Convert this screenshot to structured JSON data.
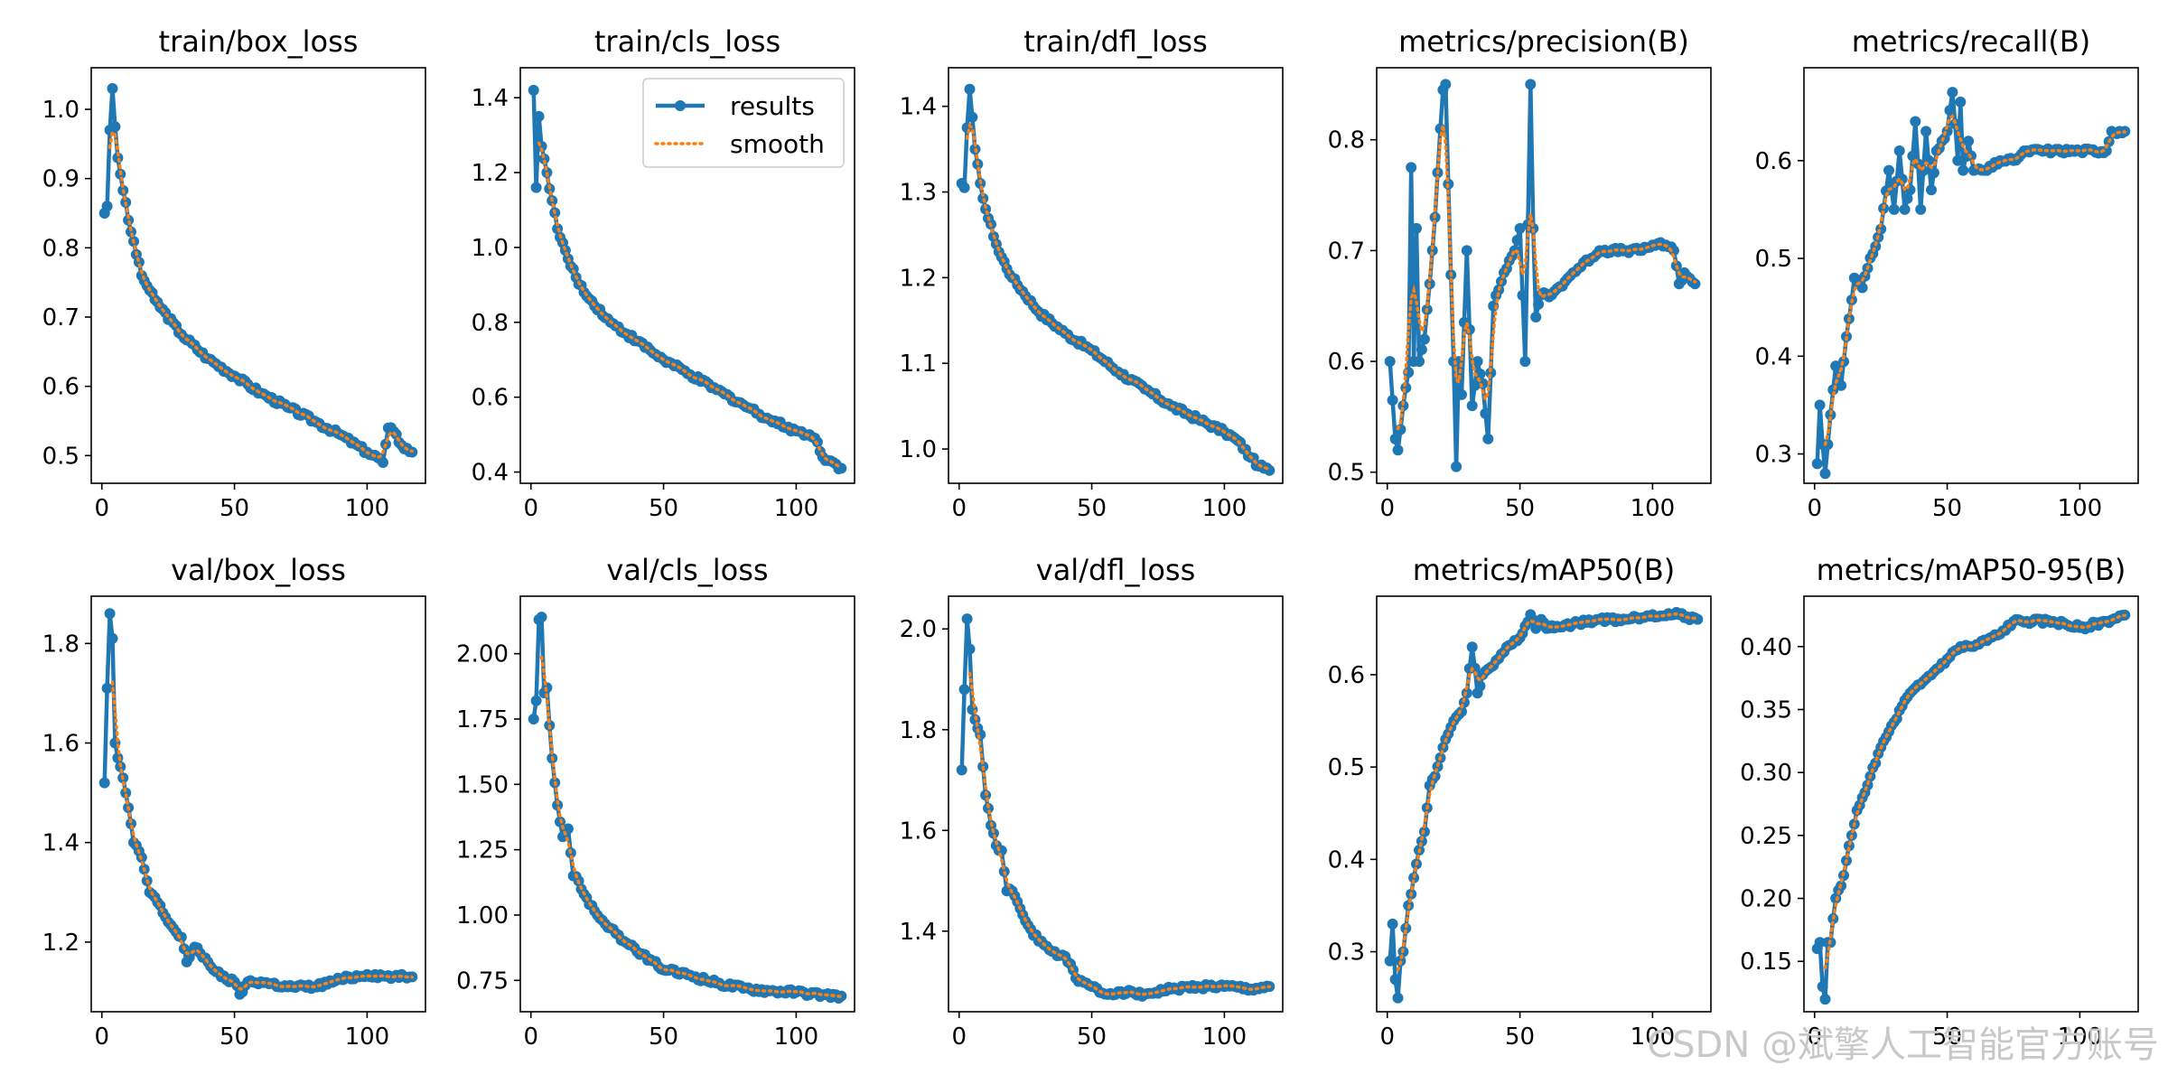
{
  "colors": {
    "results": "#1f77b4",
    "smooth": "#ff7f0e",
    "watermark": "#c8c8c8"
  },
  "watermark": "CSDN @斌擎人工智能官方账号",
  "chart_data": [
    {
      "type": "line",
      "title": "train/box_loss",
      "legend": null,
      "x_ticks": [
        0,
        50,
        100
      ],
      "y_ticks": [
        0.5,
        0.6,
        0.7,
        0.8,
        0.9,
        1.0
      ],
      "y_tick_labels": [
        "0.5",
        "0.6",
        "0.7",
        "0.8",
        "0.9",
        "1.0"
      ],
      "xlim": [
        -4,
        122
      ],
      "ylim": [
        0.46,
        1.06
      ],
      "keypoints_x": [
        1,
        2,
        3,
        4,
        5,
        6,
        10,
        15,
        20,
        30,
        40,
        50,
        60,
        70,
        80,
        90,
        100,
        105,
        106,
        108,
        110,
        113,
        117
      ],
      "keypoints_y": [
        0.85,
        0.86,
        0.97,
        1.03,
        0.975,
        0.93,
        0.84,
        0.76,
        0.725,
        0.675,
        0.64,
        0.615,
        0.59,
        0.57,
        0.55,
        0.53,
        0.505,
        0.495,
        0.49,
        0.54,
        0.535,
        0.515,
        0.505
      ],
      "smooth_start": 2
    },
    {
      "type": "line",
      "title": "train/cls_loss",
      "legend": {
        "placement": "upper-right",
        "results": "results",
        "smooth": "smooth"
      },
      "x_ticks": [
        0,
        50,
        100
      ],
      "y_ticks": [
        0.4,
        0.6,
        0.8,
        1.0,
        1.2,
        1.4
      ],
      "y_tick_labels": [
        "0.4",
        "0.6",
        "0.8",
        "1.0",
        "1.2",
        "1.4"
      ],
      "xlim": [
        -4,
        122
      ],
      "ylim": [
        0.37,
        1.48
      ],
      "keypoints_x": [
        1,
        2,
        3,
        4,
        6,
        10,
        15,
        20,
        30,
        40,
        50,
        60,
        70,
        80,
        90,
        100,
        105,
        108,
        110,
        113,
        117
      ],
      "keypoints_y": [
        1.42,
        1.16,
        1.35,
        1.27,
        1.2,
        1.05,
        0.95,
        0.88,
        0.8,
        0.75,
        0.7,
        0.66,
        0.62,
        0.58,
        0.54,
        0.51,
        0.5,
        0.48,
        0.44,
        0.43,
        0.41
      ],
      "smooth_start": 2
    },
    {
      "type": "line",
      "title": "train/dfl_loss",
      "legend": null,
      "x_ticks": [
        0,
        50,
        100
      ],
      "y_ticks": [
        1.0,
        1.1,
        1.2,
        1.3,
        1.4
      ],
      "y_tick_labels": [
        "1.0",
        "1.1",
        "1.2",
        "1.3",
        "1.4"
      ],
      "xlim": [
        -4,
        122
      ],
      "ylim": [
        0.96,
        1.445
      ],
      "keypoints_x": [
        1,
        2,
        3,
        4,
        6,
        8,
        10,
        15,
        20,
        30,
        40,
        50,
        60,
        70,
        80,
        90,
        100,
        105,
        110,
        113,
        117
      ],
      "keypoints_y": [
        1.31,
        1.305,
        1.375,
        1.42,
        1.35,
        1.31,
        1.28,
        1.23,
        1.2,
        1.16,
        1.135,
        1.115,
        1.09,
        1.07,
        1.05,
        1.035,
        1.02,
        1.01,
        0.99,
        0.98,
        0.975
      ],
      "smooth_start": 2
    },
    {
      "type": "line",
      "title": "metrics/precision(B)",
      "legend": null,
      "x_ticks": [
        0,
        50,
        100
      ],
      "y_ticks": [
        0.5,
        0.6,
        0.7,
        0.8
      ],
      "y_tick_labels": [
        "0.5",
        "0.6",
        "0.7",
        "0.8"
      ],
      "xlim": [
        -4,
        122
      ],
      "ylim": [
        0.49,
        0.865
      ],
      "keypoints_x": [
        1,
        2,
        3,
        4,
        6,
        8,
        9,
        10,
        11,
        12,
        14,
        16,
        18,
        20,
        21,
        22,
        23,
        25,
        26,
        27,
        28,
        30,
        32,
        34,
        36,
        38,
        40,
        44,
        48,
        50,
        52,
        54,
        55,
        56,
        58,
        62,
        70,
        80,
        90,
        95,
        100,
        105,
        108,
        110,
        112,
        114,
        116
      ],
      "keypoints_y": [
        0.6,
        0.565,
        0.53,
        0.52,
        0.56,
        0.59,
        0.775,
        0.6,
        0.72,
        0.6,
        0.62,
        0.67,
        0.73,
        0.81,
        0.845,
        0.85,
        0.76,
        0.6,
        0.505,
        0.6,
        0.57,
        0.7,
        0.56,
        0.6,
        0.58,
        0.53,
        0.65,
        0.68,
        0.7,
        0.72,
        0.6,
        0.85,
        0.72,
        0.64,
        0.66,
        0.66,
        0.68,
        0.7,
        0.7,
        0.7,
        0.705,
        0.705,
        0.7,
        0.67,
        0.68,
        0.675,
        0.67
      ],
      "smooth_start": 3
    },
    {
      "type": "line",
      "title": "metrics/recall(B)",
      "legend": null,
      "x_ticks": [
        0,
        50,
        100
      ],
      "y_ticks": [
        0.3,
        0.4,
        0.5,
        0.6
      ],
      "y_tick_labels": [
        "0.3",
        "0.4",
        "0.5",
        "0.6"
      ],
      "xlim": [
        -4,
        122
      ],
      "ylim": [
        0.27,
        0.695
      ],
      "keypoints_x": [
        1,
        2,
        3,
        4,
        6,
        8,
        10,
        12,
        15,
        18,
        20,
        25,
        28,
        30,
        32,
        34,
        36,
        38,
        40,
        42,
        44,
        46,
        48,
        50,
        52,
        54,
        55,
        56,
        58,
        60,
        65,
        70,
        75,
        80,
        90,
        100,
        110,
        112,
        115,
        117
      ],
      "keypoints_y": [
        0.29,
        0.35,
        0.31,
        0.28,
        0.34,
        0.39,
        0.37,
        0.42,
        0.48,
        0.47,
        0.49,
        0.53,
        0.59,
        0.55,
        0.61,
        0.55,
        0.57,
        0.64,
        0.55,
        0.63,
        0.57,
        0.61,
        0.62,
        0.63,
        0.67,
        0.6,
        0.66,
        0.59,
        0.62,
        0.59,
        0.59,
        0.6,
        0.6,
        0.61,
        0.61,
        0.61,
        0.61,
        0.63,
        0.63,
        0.63
      ],
      "smooth_start": 3
    },
    {
      "type": "line",
      "title": "val/box_loss",
      "legend": null,
      "x_ticks": [
        0,
        50,
        100
      ],
      "y_ticks": [
        1.2,
        1.4,
        1.6,
        1.8
      ],
      "y_tick_labels": [
        "1.2",
        "1.4",
        "1.6",
        "1.8"
      ],
      "xlim": [
        -4,
        122
      ],
      "ylim": [
        1.06,
        1.895
      ],
      "keypoints_x": [
        1,
        2,
        3,
        4,
        5,
        6,
        8,
        10,
        12,
        15,
        18,
        20,
        24,
        28,
        30,
        32,
        35,
        40,
        45,
        50,
        52,
        55,
        60,
        70,
        80,
        90,
        100,
        110,
        117
      ],
      "keypoints_y": [
        1.52,
        1.71,
        1.86,
        1.81,
        1.6,
        1.57,
        1.53,
        1.47,
        1.4,
        1.37,
        1.3,
        1.29,
        1.25,
        1.22,
        1.21,
        1.16,
        1.19,
        1.16,
        1.13,
        1.12,
        1.095,
        1.12,
        1.12,
        1.11,
        1.11,
        1.125,
        1.135,
        1.13,
        1.13
      ],
      "smooth_start": 3
    },
    {
      "type": "line",
      "title": "val/cls_loss",
      "legend": null,
      "x_ticks": [
        0,
        50,
        100
      ],
      "y_ticks": [
        0.75,
        1.0,
        1.25,
        1.5,
        1.75,
        2.0
      ],
      "y_tick_labels": [
        "0.75",
        "1.00",
        "1.25",
        "1.50",
        "1.75",
        "2.00"
      ],
      "xlim": [
        -4,
        122
      ],
      "ylim": [
        0.63,
        2.22
      ],
      "keypoints_x": [
        1,
        2,
        3,
        4,
        5,
        6,
        8,
        10,
        12,
        14,
        16,
        18,
        20,
        25,
        30,
        35,
        40,
        45,
        50,
        60,
        70,
        80,
        90,
        100,
        110,
        117
      ],
      "keypoints_y": [
        1.75,
        1.82,
        2.13,
        2.14,
        1.85,
        1.87,
        1.6,
        1.42,
        1.3,
        1.33,
        1.15,
        1.13,
        1.08,
        1.0,
        0.95,
        0.9,
        0.86,
        0.83,
        0.79,
        0.77,
        0.74,
        0.72,
        0.71,
        0.705,
        0.695,
        0.69
      ],
      "smooth_start": 3
    },
    {
      "type": "line",
      "title": "val/dfl_loss",
      "legend": null,
      "x_ticks": [
        0,
        50,
        100
      ],
      "y_ticks": [
        1.4,
        1.6,
        1.8,
        2.0
      ],
      "y_tick_labels": [
        "1.4",
        "1.6",
        "1.8",
        "2.0"
      ],
      "xlim": [
        -4,
        122
      ],
      "ylim": [
        1.24,
        2.065
      ],
      "keypoints_x": [
        1,
        2,
        3,
        4,
        5,
        6,
        8,
        10,
        12,
        14,
        16,
        18,
        20,
        25,
        30,
        35,
        40,
        45,
        50,
        55,
        60,
        70,
        80,
        90,
        100,
        110,
        117
      ],
      "keypoints_y": [
        1.72,
        1.88,
        2.02,
        1.96,
        1.84,
        1.82,
        1.79,
        1.67,
        1.61,
        1.57,
        1.56,
        1.48,
        1.48,
        1.42,
        1.38,
        1.36,
        1.35,
        1.3,
        1.29,
        1.275,
        1.28,
        1.275,
        1.285,
        1.29,
        1.29,
        1.285,
        1.29
      ],
      "smooth_start": 3
    },
    {
      "type": "line",
      "title": "metrics/mAP50(B)",
      "legend": null,
      "x_ticks": [
        0,
        50,
        100
      ],
      "y_ticks": [
        0.3,
        0.4,
        0.5,
        0.6
      ],
      "y_tick_labels": [
        "0.3",
        "0.4",
        "0.5",
        "0.6"
      ],
      "xlim": [
        -4,
        122
      ],
      "ylim": [
        0.235,
        0.685
      ],
      "keypoints_x": [
        1,
        2,
        3,
        4,
        5,
        6,
        8,
        10,
        12,
        14,
        16,
        18,
        20,
        22,
        25,
        28,
        30,
        32,
        34,
        36,
        40,
        45,
        50,
        54,
        56,
        58,
        60,
        70,
        80,
        90,
        100,
        110,
        117
      ],
      "keypoints_y": [
        0.29,
        0.33,
        0.27,
        0.25,
        0.29,
        0.3,
        0.35,
        0.38,
        0.41,
        0.43,
        0.48,
        0.49,
        0.51,
        0.53,
        0.55,
        0.56,
        0.58,
        0.63,
        0.58,
        0.6,
        0.61,
        0.63,
        0.64,
        0.665,
        0.65,
        0.66,
        0.65,
        0.655,
        0.66,
        0.66,
        0.665,
        0.665,
        0.66
      ],
      "smooth_start": 3
    },
    {
      "type": "line",
      "title": "metrics/mAP50-95(B)",
      "legend": null,
      "x_ticks": [
        0,
        50,
        100
      ],
      "y_ticks": [
        0.15,
        0.2,
        0.25,
        0.3,
        0.35,
        0.4
      ],
      "y_tick_labels": [
        "0.15",
        "0.20",
        "0.25",
        "0.30",
        "0.35",
        "0.40"
      ],
      "xlim": [
        -4,
        122
      ],
      "ylim": [
        0.11,
        0.44
      ],
      "keypoints_x": [
        1,
        2,
        3,
        4,
        5,
        6,
        8,
        10,
        12,
        14,
        16,
        18,
        20,
        25,
        30,
        35,
        40,
        45,
        50,
        55,
        60,
        70,
        75,
        80,
        90,
        100,
        110,
        117
      ],
      "keypoints_y": [
        0.16,
        0.165,
        0.13,
        0.12,
        0.165,
        0.165,
        0.2,
        0.21,
        0.23,
        0.25,
        0.27,
        0.28,
        0.29,
        0.32,
        0.34,
        0.36,
        0.37,
        0.38,
        0.39,
        0.4,
        0.4,
        0.41,
        0.42,
        0.42,
        0.42,
        0.415,
        0.42,
        0.425
      ],
      "smooth_start": 3
    }
  ]
}
